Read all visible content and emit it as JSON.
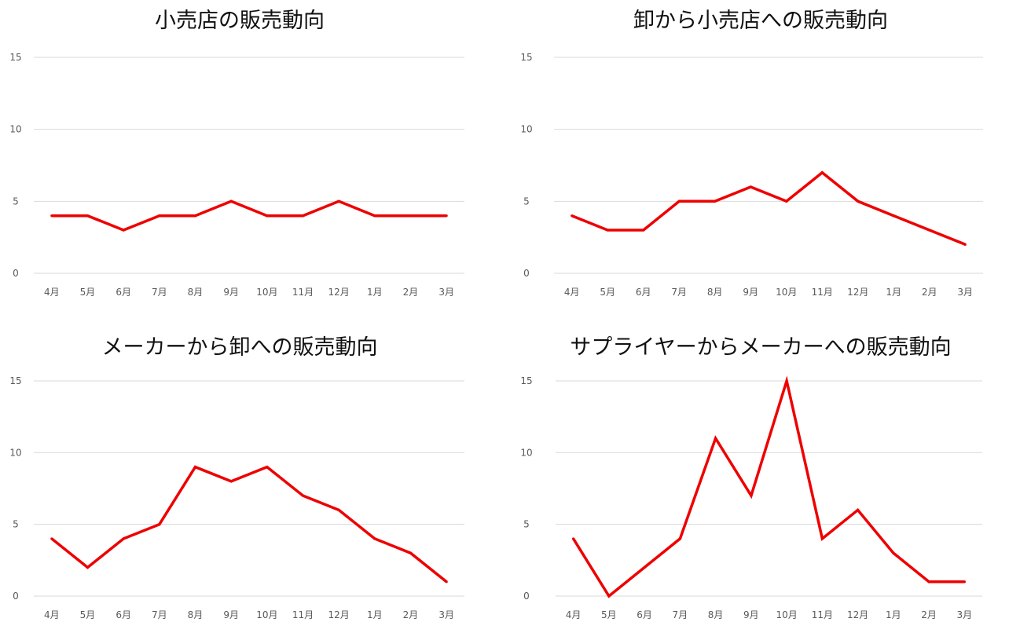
{
  "colors": {
    "series": "#ee0000",
    "grid": "#d9d9d9",
    "tick_text": "#595959",
    "title_text": "#111111"
  },
  "chart_data": [
    {
      "type": "line",
      "title": "小売店の販売動向",
      "categories": [
        "4月",
        "5月",
        "6月",
        "7月",
        "8月",
        "9月",
        "10月",
        "11月",
        "12月",
        "1月",
        "2月",
        "3月"
      ],
      "values": [
        4,
        4,
        3,
        4,
        4,
        5,
        4,
        4,
        5,
        4,
        4,
        4
      ],
      "ylim": [
        0,
        15
      ],
      "yticks": [
        0,
        5,
        10,
        15
      ],
      "grid": true,
      "legend": "none"
    },
    {
      "type": "line",
      "title": "卸から小売店への販売動向",
      "categories": [
        "4月",
        "5月",
        "6月",
        "7月",
        "8月",
        "9月",
        "10月",
        "11月",
        "12月",
        "1月",
        "2月",
        "3月"
      ],
      "values": [
        4,
        3,
        3,
        5,
        5,
        6,
        5,
        7,
        5,
        4,
        3,
        2
      ],
      "ylim": [
        0,
        15
      ],
      "yticks": [
        0,
        5,
        10,
        15
      ],
      "grid": true,
      "legend": "none"
    },
    {
      "type": "line",
      "title": "メーカーから卸への販売動向",
      "categories": [
        "4月",
        "5月",
        "6月",
        "7月",
        "8月",
        "9月",
        "10月",
        "11月",
        "12月",
        "1月",
        "2月",
        "3月"
      ],
      "values": [
        4,
        2,
        4,
        5,
        9,
        8,
        9,
        7,
        6,
        4,
        3,
        1
      ],
      "ylim": [
        0,
        15
      ],
      "yticks": [
        0,
        5,
        10,
        15
      ],
      "grid": true,
      "legend": "none"
    },
    {
      "type": "line",
      "title": "サプライヤーからメーカーへの販売動向",
      "categories": [
        "4月",
        "5月",
        "6月",
        "7月",
        "8月",
        "9月",
        "10月",
        "11月",
        "12月",
        "1月",
        "2月",
        "3月"
      ],
      "values": [
        4,
        0,
        2,
        4,
        11,
        7,
        15,
        4,
        6,
        3,
        1,
        1
      ],
      "ylim": [
        0,
        15
      ],
      "yticks": [
        0,
        5,
        10,
        15
      ],
      "grid": true,
      "legend": "none"
    }
  ]
}
